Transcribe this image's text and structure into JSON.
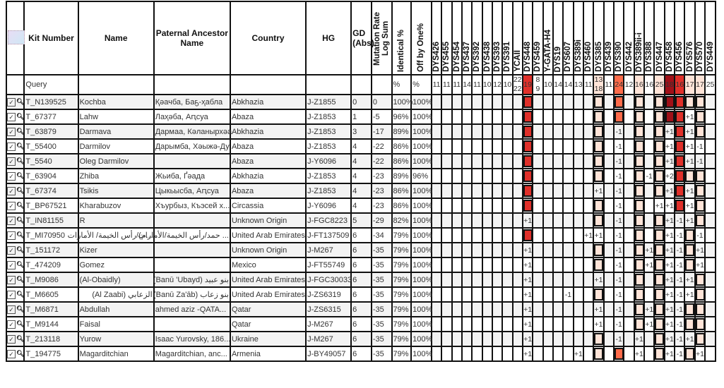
{
  "headers": {
    "kit": "Kit Number",
    "name": "Name",
    "ancestor": "Paternal Ancestor Name",
    "country": "Country",
    "hg": "HG",
    "gd": "GD (Abs)",
    "mr": "Mutation Rate Log Sum",
    "ident": "Identical %",
    "off": "Off by One%"
  },
  "markers": [
    "DYS426",
    "DYS455",
    "DYS454",
    "DYS437",
    "DYS392",
    "DYS438",
    "DYS393",
    "DYS391",
    "YCAII",
    "DYS448",
    "DYS459",
    "Y-GATA-H4",
    "DYS19",
    "DYS607",
    "DYS389i",
    "DYS460",
    "DYS385",
    "DYS439",
    "DYS390",
    "DYS442",
    "DYS389ii-i",
    "DYS388",
    "DYS447",
    "DYS458",
    "DYS456",
    "DYS576",
    "DYS570",
    "DYS449"
  ],
  "query": {
    "label": "Query",
    "ident": "%",
    "off": "%",
    "values": [
      "11",
      "11",
      "11",
      "14",
      "11",
      "10",
      "12",
      "10",
      "22 22",
      "19",
      "8 9",
      "10",
      "14",
      "14",
      "13",
      "11",
      "13 18",
      "11",
      "24",
      "12",
      "16",
      "16",
      "25",
      "18",
      "16",
      "17",
      "17",
      "25"
    ]
  },
  "marker_colors": {
    "DYS448": "#e0302a",
    "DYS385": "#ffe4d8",
    "DYS390": "#ff6b4a",
    "DYS389ii-i": "#ffe4d8",
    "DYS447": "#ffe4d8",
    "DYS458": "#a01018",
    "DYS456": "#e0302a",
    "DYS576": "#ffe4d8",
    "DYS570": "#ffe4d8"
  },
  "rows": [
    {
      "kit": "T_N139525",
      "name": "Kochba",
      "ancestor": "Қәачба, Баҕ-ҳабла",
      "country": "Abkhazia",
      "hg": "J-Z1855",
      "gd": "0",
      "mr": "0",
      "ident": "100%",
      "off": "100%",
      "diffs": {}
    },
    {
      "kit": "T_67377",
      "name": "Lahw",
      "ancestor": "Лаҳәба, Аԥсуа",
      "country": "Abaza",
      "hg": "J-Z1853",
      "gd": "1",
      "mr": "-5",
      "ident": "96%",
      "off": "100%",
      "diffs": {
        "DYS576": "+1"
      }
    },
    {
      "kit": "T_63879",
      "name": "Darmava",
      "ancestor": "Дармаа, Кәланырхәа",
      "country": "Abkhazia",
      "hg": "J-Z1853",
      "gd": "3",
      "mr": "-17",
      "ident": "89%",
      "off": "100%",
      "diffs": {
        "DYS390": "-1",
        "DYS458": "+1",
        "DYS576": "+1"
      }
    },
    {
      "kit": "T_55400",
      "name": "Darmilov",
      "ancestor": "Дарымба, Хәыжә-Ду",
      "country": "Abaza",
      "hg": "J-Z1853",
      "gd": "4",
      "mr": "-22",
      "ident": "86%",
      "off": "100%",
      "diffs": {
        "DYS390": "-1",
        "DYS458": "+1",
        "DYS576": "+1",
        "DYS570": "-1"
      }
    },
    {
      "kit": "T_5540",
      "name": "Oleg Darmilov",
      "ancestor": "",
      "country": "Abaza",
      "hg": "J-Y6096",
      "gd": "4",
      "mr": "-22",
      "ident": "86%",
      "off": "100%",
      "diffs": {
        "DYS390": "-1",
        "DYS458": "+1",
        "DYS576": "+1",
        "DYS570": "-1"
      }
    },
    {
      "kit": "T_63904",
      "name": "Zhiba",
      "ancestor": "Жьиба, Ґәада",
      "country": "Abkhazia",
      "hg": "J-Z1853",
      "gd": "4",
      "mr": "-23",
      "ident": "89%",
      "off": "96%",
      "diffs": {
        "DYS390": "-1",
        "DYS388": "-1",
        "DYS458": "+2"
      }
    },
    {
      "kit": "T_67374",
      "name": "Tsikis",
      "ancestor": "Цыкьысба, Аԥсуа",
      "country": "Abaza",
      "hg": "J-Z1853",
      "gd": "4",
      "mr": "-23",
      "ident": "86%",
      "off": "100%",
      "diffs": {
        "DYS385": "+1",
        "DYS390": "-1",
        "DYS458": "+1",
        "DYS576": "+1"
      }
    },
    {
      "kit": "T_BP67521",
      "name": "Kharabuzov",
      "ancestor": "Хъурбыз, Къэсей х...",
      "country": "Circassia",
      "hg": "J-Y6096",
      "gd": "4",
      "mr": "-23",
      "ident": "86%",
      "off": "100%",
      "diffs": {
        "DYS390": "-1",
        "DYS447": "+1",
        "DYS458": "+1",
        "DYS576": "+1"
      }
    },
    {
      "kit": "T_IN81155",
      "name": "R",
      "ancestor": "",
      "country": "Unknown Origin",
      "hg": "J-FGC8223",
      "gd": "5",
      "mr": "-29",
      "ident": "82%",
      "off": "100%",
      "diffs": {
        "DYS448": "+1",
        "DYS390": "-1",
        "DYS458": "+1",
        "DYS456": "-1",
        "DYS576": "+1"
      }
    },
    {
      "kit": "T_MI70950",
      "name": "...م)/رأس الخيمة/ الأمارات",
      "ancestor": "... حمد/رأس الخيمة/الأمارات",
      "country": "United Arab Emirates",
      "hg": "J-FT137509",
      "gd": "6",
      "mr": "-34",
      "ident": "79%",
      "off": "100%",
      "diffs": {
        "DYS460": "+1",
        "DYS385": "+1",
        "DYS390": "-1",
        "DYS458": "+1",
        "DYS456": "-1",
        "DYS570": "-1"
      }
    },
    {
      "kit": "T_151172",
      "name": "Kizer",
      "ancestor": "",
      "country": "Unknown Origin",
      "hg": "J-M267",
      "gd": "6",
      "mr": "-35",
      "ident": "79%",
      "off": "100%",
      "diffs": {
        "DYS448": "+1",
        "DYS390": "-1",
        "DYS388": "+1",
        "DYS458": "+1",
        "DYS456": "-1",
        "DYS570": "+1"
      }
    },
    {
      "kit": "T_474209",
      "name": "Gomez",
      "ancestor": "",
      "country": "Mexico",
      "hg": "J-FT55749",
      "gd": "6",
      "mr": "-35",
      "ident": "79%",
      "off": "100%",
      "diffs": {
        "DYS448": "+1",
        "DYS390": "-1",
        "DYS388": "+1",
        "DYS458": "+1",
        "DYS456": "-1",
        "DYS570": "+1"
      }
    },
    {
      "kit": "T_M9086",
      "name": "(Al-Obaidly)",
      "ancestor": "بنو عبيد (Banū 'Ubayd)",
      "country": "United Arab Emirates",
      "hg": "J-FGC30033",
      "gd": "6",
      "mr": "-35",
      "ident": "79%",
      "off": "100%",
      "diffs": {
        "DYS448": "+1",
        "DYS385": "+1",
        "DYS390": "-1",
        "DYS458": "+1",
        "DYS456": "-1",
        "DYS576": "+1"
      }
    },
    {
      "kit": "T_M6605",
      "name": "الزعابي (Al Zaabi)",
      "ancestor": "بنو زعاب (Banū Za'āb)",
      "country": "United Arab Emirates",
      "hg": "J-ZS6319",
      "gd": "6",
      "mr": "-35",
      "ident": "79%",
      "off": "100%",
      "diffs": {
        "DYS448": "+1",
        "DYS607": "-1",
        "DYS390": "-1",
        "DYS458": "+1",
        "DYS456": "-1",
        "DYS576": "+1"
      }
    },
    {
      "kit": "T_M6871",
      "name": "Abdullah",
      "ancestor": "ahmed aziz -QATA...",
      "country": "Qatar",
      "hg": "J-ZS6315",
      "gd": "6",
      "mr": "-35",
      "ident": "79%",
      "off": "100%",
      "diffs": {
        "DYS448": "+1",
        "DYS385": "+1",
        "DYS390": "-1",
        "DYS388": "+1",
        "DYS458": "+1",
        "DYS456": "-1"
      }
    },
    {
      "kit": "T_M9144",
      "name": "Faisal",
      "ancestor": "",
      "country": "Qatar",
      "hg": "J-M267",
      "gd": "6",
      "mr": "-35",
      "ident": "79%",
      "off": "100%",
      "diffs": {
        "DYS448": "+1",
        "DYS385": "+1",
        "DYS390": "-1",
        "DYS388": "+1",
        "DYS458": "+1",
        "DYS456": "-1"
      }
    },
    {
      "kit": "T_213118",
      "name": "Yurow",
      "ancestor": "Isaac Yurovsky, 186...",
      "country": "Ukraine",
      "hg": "J-M267",
      "gd": "6",
      "mr": "-35",
      "ident": "79%",
      "off": "100%",
      "diffs": {
        "DYS448": "+1",
        "DYS390": "-1",
        "DYS389ii-i": "+1",
        "DYS458": "+1",
        "DYS456": "-1",
        "DYS576": "+1"
      }
    },
    {
      "kit": "T_194775",
      "name": "Magarditchian",
      "ancestor": "Magarditchian, anc...",
      "country": "Armenia",
      "hg": "J-BY49057",
      "gd": "6",
      "mr": "-35",
      "ident": "79%",
      "off": "100%",
      "diffs": {
        "DYS448": "+1",
        "DYS389i": "+1",
        "DYS389ii-i": "+1",
        "DYS458": "+1",
        "DYS456": "-1",
        "DYS570": "+1"
      }
    }
  ],
  "icons": {
    "select": "checkbox-checked-icon",
    "detail": "magnifier-icon",
    "tree": "tree-diagram-icon"
  }
}
